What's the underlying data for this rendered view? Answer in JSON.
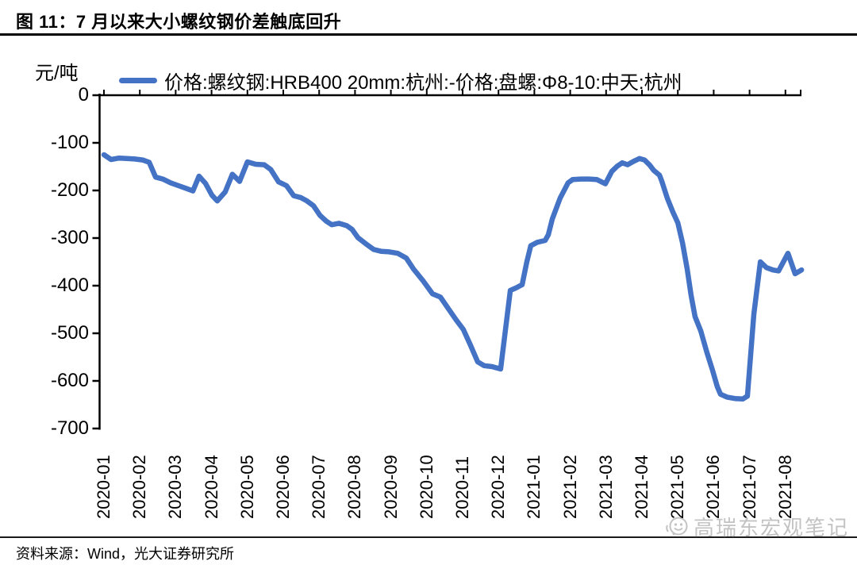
{
  "colors": {
    "line": "#4472C4",
    "axis": "#000000",
    "watermark": "#c3c3c3"
  },
  "footer": {
    "source": "资料来源：Wind，光大证券研究所"
  },
  "watermark": {
    "icon": "smiley-chat-icon",
    "text": "高瑞东宏观笔记"
  },
  "chart_data": {
    "type": "line",
    "title": "图 11：7 月以来大小螺纹钢价差触底回升",
    "y_unit": "元/吨",
    "xlabel": "",
    "ylabel": "元/吨",
    "ylim": [
      -700,
      0
    ],
    "y_ticks": [
      0,
      -100,
      -200,
      -300,
      -400,
      -500,
      -600,
      -700
    ],
    "grid": false,
    "legend_position": "top",
    "categories": [
      "2020-01",
      "2020-02",
      "2020-03",
      "2020-04",
      "2020-05",
      "2020-06",
      "2020-07",
      "2020-08",
      "2020-09",
      "2020-10",
      "2020-11",
      "2020-12",
      "2021-01",
      "2021-02",
      "2021-03",
      "2021-04",
      "2021-05",
      "2021-06",
      "2021-07",
      "2021-08"
    ],
    "series": [
      {
        "name": "价格:螺纹钢:HRB400 20mm:杭州:-价格:盘螺:Φ8-10:中天:杭州",
        "color": "#4472C4",
        "points": [
          [
            0.0,
            -125
          ],
          [
            0.2,
            -135
          ],
          [
            0.42,
            -132
          ],
          [
            0.64,
            -133
          ],
          [
            0.86,
            -134
          ],
          [
            1.08,
            -136
          ],
          [
            1.26,
            -141
          ],
          [
            1.44,
            -172
          ],
          [
            1.64,
            -176
          ],
          [
            1.86,
            -184
          ],
          [
            2.08,
            -190
          ],
          [
            2.3,
            -196
          ],
          [
            2.48,
            -201
          ],
          [
            2.65,
            -170
          ],
          [
            2.83,
            -185
          ],
          [
            3.01,
            -210
          ],
          [
            3.16,
            -222
          ],
          [
            3.38,
            -203
          ],
          [
            3.58,
            -166
          ],
          [
            3.78,
            -181
          ],
          [
            4.0,
            -140
          ],
          [
            4.23,
            -145
          ],
          [
            4.47,
            -146
          ],
          [
            4.65,
            -156
          ],
          [
            4.87,
            -182
          ],
          [
            5.09,
            -190
          ],
          [
            5.29,
            -211
          ],
          [
            5.49,
            -215
          ],
          [
            5.66,
            -222
          ],
          [
            5.84,
            -232
          ],
          [
            6.02,
            -252
          ],
          [
            6.19,
            -264
          ],
          [
            6.35,
            -272
          ],
          [
            6.55,
            -269
          ],
          [
            6.77,
            -274
          ],
          [
            6.92,
            -282
          ],
          [
            7.08,
            -299
          ],
          [
            7.3,
            -312
          ],
          [
            7.52,
            -324
          ],
          [
            7.74,
            -328
          ],
          [
            7.96,
            -329
          ],
          [
            8.19,
            -332
          ],
          [
            8.43,
            -342
          ],
          [
            8.63,
            -365
          ],
          [
            8.89,
            -389
          ],
          [
            9.16,
            -417
          ],
          [
            9.38,
            -424
          ],
          [
            9.6,
            -448
          ],
          [
            9.82,
            -472
          ],
          [
            10.02,
            -492
          ],
          [
            10.22,
            -525
          ],
          [
            10.42,
            -560
          ],
          [
            10.6,
            -568
          ],
          [
            10.82,
            -570
          ],
          [
            11.06,
            -575
          ],
          [
            11.33,
            -410
          ],
          [
            11.48,
            -405
          ],
          [
            11.66,
            -398
          ],
          [
            11.79,
            -350
          ],
          [
            11.9,
            -316
          ],
          [
            12.08,
            -309
          ],
          [
            12.3,
            -305
          ],
          [
            12.39,
            -293
          ],
          [
            12.5,
            -260
          ],
          [
            12.72,
            -216
          ],
          [
            12.94,
            -184
          ],
          [
            13.07,
            -177
          ],
          [
            13.3,
            -176
          ],
          [
            13.52,
            -176
          ],
          [
            13.74,
            -177
          ],
          [
            13.98,
            -186
          ],
          [
            14.16,
            -160
          ],
          [
            14.31,
            -149
          ],
          [
            14.45,
            -142
          ],
          [
            14.6,
            -146
          ],
          [
            14.76,
            -139
          ],
          [
            14.93,
            -133
          ],
          [
            15.07,
            -136
          ],
          [
            15.22,
            -147
          ],
          [
            15.33,
            -158
          ],
          [
            15.49,
            -168
          ],
          [
            15.55,
            -180
          ],
          [
            15.71,
            -217
          ],
          [
            15.86,
            -245
          ],
          [
            16.0,
            -268
          ],
          [
            16.13,
            -310
          ],
          [
            16.26,
            -365
          ],
          [
            16.37,
            -420
          ],
          [
            16.48,
            -465
          ],
          [
            16.64,
            -495
          ],
          [
            16.81,
            -540
          ],
          [
            16.97,
            -578
          ],
          [
            17.1,
            -612
          ],
          [
            17.19,
            -628
          ],
          [
            17.37,
            -634
          ],
          [
            17.59,
            -637
          ],
          [
            17.81,
            -638
          ],
          [
            17.94,
            -632
          ],
          [
            18.12,
            -460
          ],
          [
            18.3,
            -350
          ],
          [
            18.47,
            -362
          ],
          [
            18.65,
            -367
          ],
          [
            18.81,
            -369
          ],
          [
            19.07,
            -332
          ],
          [
            19.27,
            -375
          ],
          [
            19.45,
            -367
          ]
        ]
      }
    ]
  }
}
